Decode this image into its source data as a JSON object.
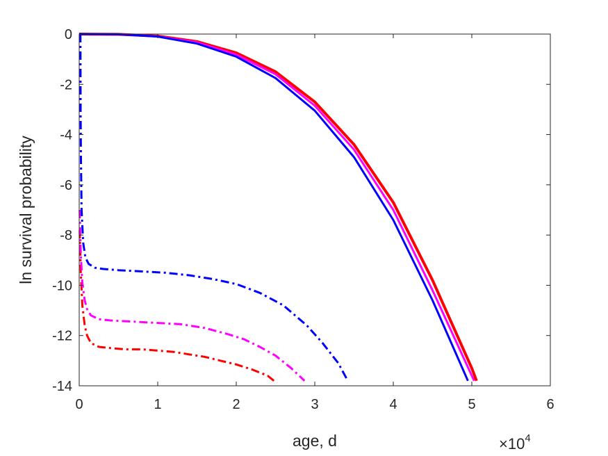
{
  "chart_data": {
    "type": "line",
    "xlabel": "age, d",
    "ylabel": "ln survival probability",
    "x_exponent": {
      "base": "×10",
      "power": "4"
    },
    "xlim": [
      0,
      60000
    ],
    "ylim": [
      -14,
      0
    ],
    "x_ticks": [
      0,
      10000,
      20000,
      30000,
      40000,
      50000,
      60000
    ],
    "x_tick_labels": [
      "0",
      "1",
      "2",
      "3",
      "4",
      "5",
      "6"
    ],
    "y_ticks": [
      0,
      -2,
      -4,
      -6,
      -8,
      -10,
      -12,
      -14
    ],
    "y_tick_labels": [
      "0",
      "-2",
      "-4",
      "-6",
      "-8",
      "-10",
      "-12",
      "-14"
    ],
    "grid": false,
    "series": [
      {
        "color": "#ff0000",
        "style": "solid",
        "width": 4,
        "x": [
          0,
          5000,
          10000,
          15000,
          20000,
          25000,
          30000,
          35000,
          40000,
          45000,
          50000,
          50600
        ],
        "y": [
          0,
          -0.01,
          -0.08,
          -0.3,
          -0.75,
          -1.5,
          -2.7,
          -4.4,
          -6.7,
          -9.8,
          -13.3,
          -13.8
        ]
      },
      {
        "color": "#ff00ff",
        "style": "solid",
        "width": 3,
        "x": [
          0,
          5000,
          10000,
          15000,
          20000,
          25000,
          30000,
          35000,
          40000,
          45000,
          50000,
          50300
        ],
        "y": [
          0,
          -0.01,
          -0.09,
          -0.33,
          -0.82,
          -1.6,
          -2.85,
          -4.6,
          -7.0,
          -10.2,
          -13.6,
          -13.8
        ]
      },
      {
        "color": "#0000ff",
        "style": "solid",
        "width": 3,
        "x": [
          0,
          5000,
          10000,
          15000,
          20000,
          25000,
          30000,
          35000,
          40000,
          45000,
          49500
        ],
        "y": [
          0,
          -0.01,
          -0.1,
          -0.38,
          -0.9,
          -1.75,
          -3.05,
          -4.9,
          -7.4,
          -10.6,
          -13.8
        ]
      },
      {
        "color": "#ff0000",
        "style": "dashdot",
        "width": 3,
        "x": [
          60,
          200,
          400,
          700,
          1000,
          1500,
          2500,
          4000,
          6000,
          8000,
          10000,
          12000,
          14000,
          16000,
          18000,
          20000,
          22000,
          24000,
          24800
        ],
        "y": [
          -7.8,
          -9.5,
          -10.8,
          -11.6,
          -12.0,
          -12.3,
          -12.45,
          -12.5,
          -12.55,
          -12.55,
          -12.6,
          -12.65,
          -12.75,
          -12.85,
          -13.0,
          -13.15,
          -13.35,
          -13.6,
          -13.8
        ]
      },
      {
        "color": "#ff00ff",
        "style": "dashdot",
        "width": 3,
        "x": [
          60,
          200,
          400,
          700,
          1000,
          1500,
          2500,
          4000,
          7000,
          10000,
          13000,
          16000,
          19000,
          21000,
          23000,
          25000,
          27000,
          28700
        ],
        "y": [
          -7.0,
          -8.8,
          -9.9,
          -10.6,
          -10.95,
          -11.2,
          -11.35,
          -11.4,
          -11.45,
          -11.5,
          -11.55,
          -11.7,
          -11.95,
          -12.15,
          -12.45,
          -12.8,
          -13.3,
          -13.8
        ]
      },
      {
        "color": "#0000ff",
        "style": "dashdot",
        "width": 3,
        "x": [
          150,
          160,
          180,
          220,
          300,
          500,
          800,
          1200,
          2000,
          3000,
          5000,
          8000,
          11000,
          14000,
          17000,
          20000,
          23000,
          26000,
          29000,
          31000,
          33000,
          34200
        ],
        "y": [
          0,
          -1,
          -3,
          -5,
          -7,
          -8.3,
          -8.9,
          -9.15,
          -9.3,
          -9.35,
          -9.4,
          -9.45,
          -9.5,
          -9.6,
          -9.75,
          -9.95,
          -10.3,
          -10.8,
          -11.6,
          -12.3,
          -13.1,
          -13.8
        ]
      }
    ]
  }
}
